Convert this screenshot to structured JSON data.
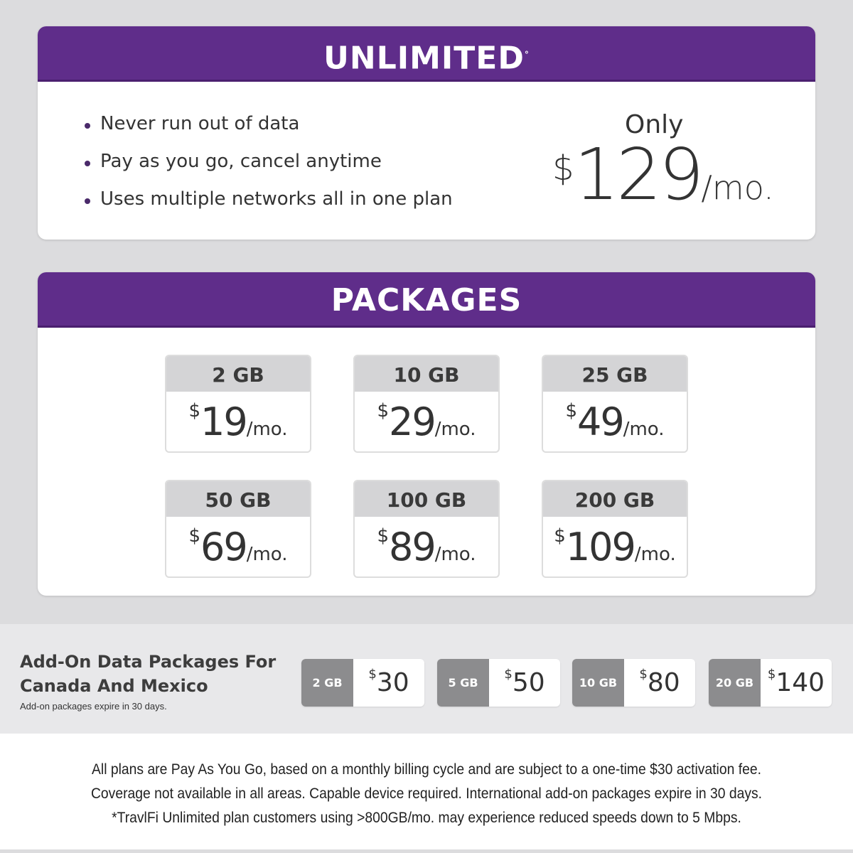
{
  "unlimited": {
    "title": "UNLIMITED",
    "title_mark": "°",
    "features": [
      "Never run out of data",
      "Pay as you go, cancel anytime",
      "Uses multiple networks all in one plan"
    ],
    "only_label": "Only",
    "currency": "$",
    "price": "129",
    "period": "/mo."
  },
  "packages": {
    "title": "PACKAGES",
    "items": [
      {
        "size": "2 GB",
        "currency": "$",
        "price": "19",
        "period": "/mo."
      },
      {
        "size": "10 GB",
        "currency": "$",
        "price": "29",
        "period": "/mo."
      },
      {
        "size": "25 GB",
        "currency": "$",
        "price": "49",
        "period": "/mo."
      },
      {
        "size": "50 GB",
        "currency": "$",
        "price": "69",
        "period": "/mo."
      },
      {
        "size": "100 GB",
        "currency": "$",
        "price": "89",
        "period": "/mo."
      },
      {
        "size": "200 GB",
        "currency": "$",
        "price": "109",
        "period": "/mo."
      }
    ]
  },
  "addons": {
    "title_line1": "Add-On Data Packages For",
    "title_line2": "Canada And Mexico",
    "note": "Add-on packages expire in 30 days.",
    "items": [
      {
        "size": "2 GB",
        "currency": "$",
        "price": "30"
      },
      {
        "size": "5 GB",
        "currency": "$",
        "price": "50"
      },
      {
        "size": "10 GB",
        "currency": "$",
        "price": "80"
      },
      {
        "size": "20 GB",
        "currency": "$",
        "price": "140"
      }
    ]
  },
  "footer": [
    "All plans are Pay As You Go, based on a monthly billing cycle and are subject to a one-time $30 activation fee.",
    "Coverage not available in all areas. Capable device required. International add-on packages expire in 30 days.",
    "*TravlFi Unlimited plan customers using >800GB/mo. may experience reduced speeds down to 5 Mbps."
  ],
  "colors": {
    "brand_purple": "#5f2d8a",
    "background": "#dcdcde",
    "addon_gray": "#8c8c8e"
  }
}
